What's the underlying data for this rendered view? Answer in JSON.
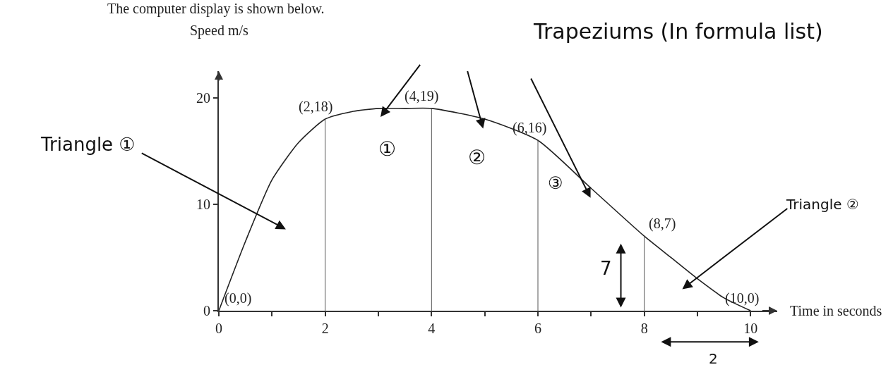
{
  "chart_data": {
    "type": "line",
    "xlabel": "Time in seconds",
    "ylabel": "Speed m/s",
    "x": [
      0,
      0.5,
      1,
      1.5,
      2,
      2.5,
      3,
      3.5,
      4,
      5,
      6,
      7,
      8,
      8.5,
      9,
      9.5,
      10
    ],
    "series": [
      {
        "color": "#222222",
        "values": [
          0,
          6.5,
          12.3,
          15.8,
          18,
          18.7,
          19,
          19,
          19,
          18,
          16,
          11.5,
          7,
          5,
          3,
          1.2,
          0
        ]
      }
    ],
    "marker": "none",
    "line_style": "solid",
    "xlim": [
      0,
      10.5
    ],
    "ylim": [
      0,
      22.5
    ],
    "xticks": [
      0,
      {
        "value": 1,
        "label": null
      },
      2,
      {
        "value": 3,
        "label": null
      },
      4,
      {
        "value": 5,
        "label": null
      },
      6,
      {
        "value": 7,
        "label": null
      },
      8,
      {
        "value": 9,
        "label": null
      },
      10
    ],
    "yticks": [
      0,
      10,
      20
    ],
    "ref_lines": [
      {
        "axis": "x",
        "value": 2,
        "label": null,
        "color": "#555555"
      },
      {
        "axis": "x",
        "value": 4,
        "label": null,
        "color": "#555555"
      },
      {
        "axis": "x",
        "value": 6,
        "label": null,
        "color": "#555555"
      },
      {
        "axis": "x",
        "value": 8,
        "label": null,
        "color": "#555555"
      }
    ],
    "annotations": [
      "The computer display is shown below.",
      "Trapeziums (In formula list)",
      "Triangle ①",
      "①",
      "②",
      "③",
      "Triangle ②",
      "7",
      "2",
      {
        "text": "(0,0)",
        "x": 0,
        "y": 0
      },
      {
        "text": "(2,18)",
        "x": 2,
        "y": 18
      },
      {
        "text": "(4,19)",
        "x": 4,
        "y": 19
      },
      {
        "text": "(6,16)",
        "x": 6,
        "y": 16
      },
      {
        "text": "(8,7)",
        "x": 8,
        "y": 7
      },
      {
        "text": "(10,0)",
        "x": 10,
        "y": 0
      }
    ]
  }
}
